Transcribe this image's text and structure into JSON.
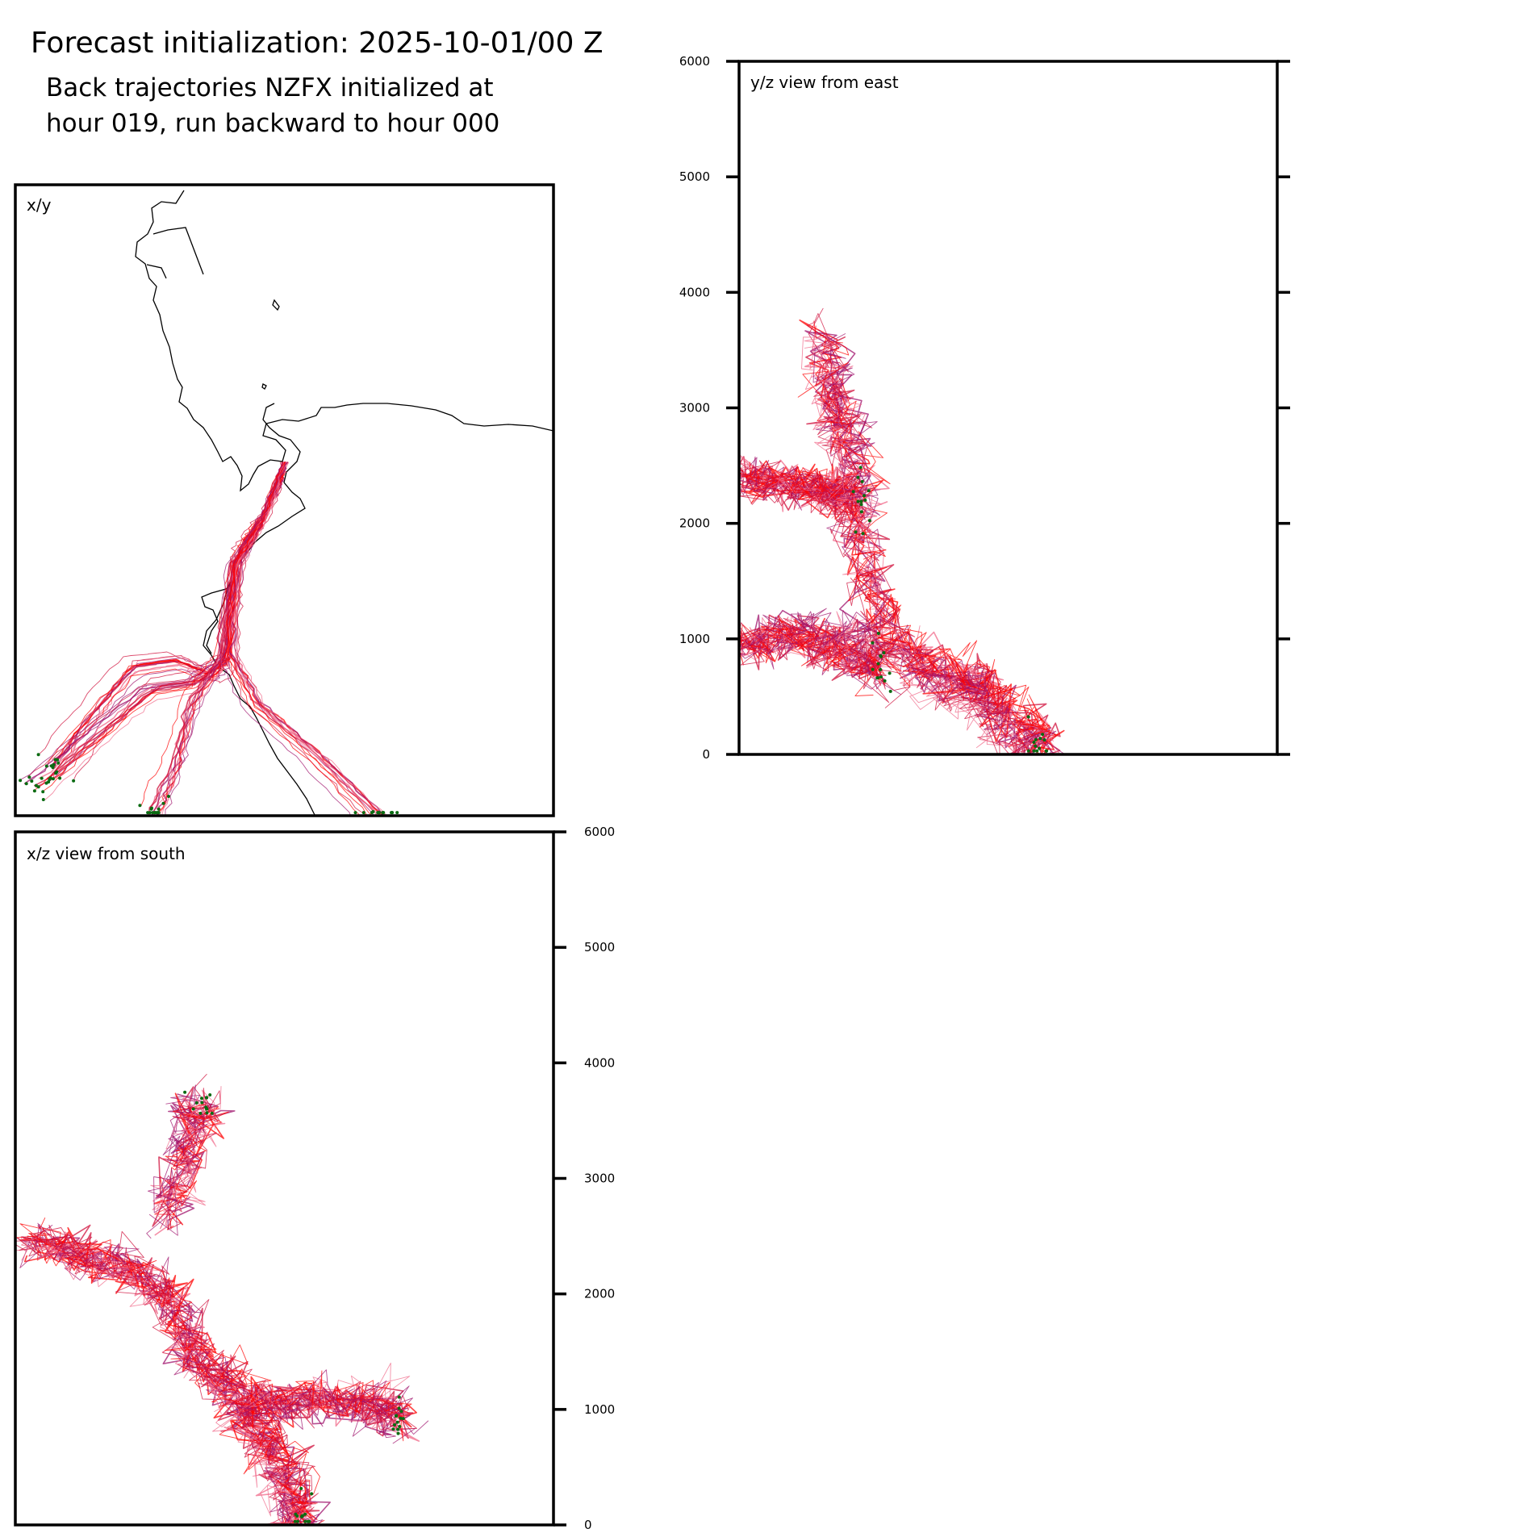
{
  "figure": {
    "title": "Forecast initialization: 2025-10-01/00 Z",
    "subtitle_line1": "Back trajectories NZFX initialized at",
    "subtitle_line2": "hour 019, run backward to hour 000"
  },
  "colors": {
    "trajectory_recent": "#ff0000",
    "trajectory_mid": "#d0103c",
    "trajectory_old": "#a0146e",
    "trajectory_faint": "#f06a8a",
    "end_marker": "#0a6b12",
    "coastline": "#000000",
    "frame": "#000000"
  },
  "chart_data": [
    {
      "panel": "xy",
      "type": "line",
      "label": "x/y",
      "description_of_axes": "plan view, no tick labels",
      "trajectories": [
        {
          "name": "main bundle",
          "x": [
            0.5,
            0.49,
            0.46,
            0.43,
            0.41,
            0.4,
            0.39,
            0.36,
            0.3,
            0.22,
            0.14,
            0.07
          ],
          "y": [
            0.56,
            0.52,
            0.47,
            0.44,
            0.4,
            0.33,
            0.24,
            0.22,
            0.24,
            0.23,
            0.15,
            0.07
          ]
        },
        {
          "name": "west branch",
          "x": [
            0.5,
            0.46,
            0.41,
            0.39,
            0.33,
            0.25,
            0.15,
            0.04
          ],
          "y": [
            0.56,
            0.47,
            0.4,
            0.25,
            0.21,
            0.2,
            0.13,
            0.05
          ]
        },
        {
          "name": "south branch",
          "x": [
            0.5,
            0.46,
            0.41,
            0.38,
            0.33,
            0.3,
            0.26
          ],
          "y": [
            0.56,
            0.47,
            0.4,
            0.24,
            0.18,
            0.08,
            0.0
          ]
        },
        {
          "name": "southeast branch",
          "x": [
            0.5,
            0.46,
            0.41,
            0.4,
            0.45,
            0.56,
            0.68
          ],
          "y": [
            0.56,
            0.47,
            0.4,
            0.26,
            0.18,
            0.1,
            0.0
          ]
        }
      ]
    },
    {
      "panel": "yz",
      "type": "line",
      "label": "y/z view from east",
      "ylim": [
        0,
        6000
      ],
      "yticks": [
        0,
        1000,
        2000,
        3000,
        4000,
        5000,
        6000
      ],
      "ytick_labels": [
        "0",
        "1000",
        "2000",
        "3000",
        "4000",
        "5000",
        "6000"
      ],
      "series": [
        {
          "name": "upper bundle",
          "x": [
            0.0,
            0.05,
            0.1,
            0.15,
            0.18,
            0.21,
            0.24,
            0.26,
            0.3,
            0.35,
            0.4,
            0.44,
            0.47,
            0.5,
            0.55,
            0.56
          ],
          "z": [
            2400,
            2380,
            2350,
            2300,
            2250,
            2200,
            1700,
            1200,
            900,
            750,
            650,
            600,
            500,
            300,
            100,
            50
          ]
        },
        {
          "name": "lower bundle",
          "x": [
            0.0,
            0.05,
            0.1,
            0.15,
            0.19,
            0.23,
            0.26
          ],
          "z": [
            950,
            1000,
            1050,
            1000,
            950,
            850,
            800
          ]
        },
        {
          "name": "high excursion",
          "x": [
            0.15,
            0.17,
            0.19,
            0.21,
            0.23
          ],
          "z": [
            3650,
            3200,
            2900,
            2600,
            2200
          ]
        }
      ]
    },
    {
      "panel": "xz",
      "type": "line",
      "label": "x/z view from south",
      "ylim": [
        0,
        6000
      ],
      "yticks": [
        0,
        1000,
        2000,
        3000,
        4000,
        5000,
        6000
      ],
      "ytick_labels": [
        "0",
        "1000",
        "2000",
        "3000",
        "4000",
        "5000",
        "6000"
      ],
      "series": [
        {
          "name": "main bundle",
          "x": [
            0.03,
            0.08,
            0.13,
            0.2,
            0.25,
            0.3,
            0.33,
            0.37,
            0.41,
            0.44,
            0.47,
            0.5,
            0.52,
            0.53
          ],
          "z": [
            2450,
            2430,
            2300,
            2250,
            2100,
            1800,
            1500,
            1300,
            1100,
            900,
            700,
            400,
            100,
            50
          ]
        },
        {
          "name": "low branch",
          "x": [
            0.44,
            0.5,
            0.56,
            0.62,
            0.68,
            0.71
          ],
          "z": [
            1050,
            1050,
            1100,
            1080,
            1000,
            900
          ]
        },
        {
          "name": "high excursion",
          "x": [
            0.28,
            0.31,
            0.33,
            0.35
          ],
          "z": [
            2600,
            3100,
            3500,
            3650
          ]
        }
      ]
    }
  ]
}
